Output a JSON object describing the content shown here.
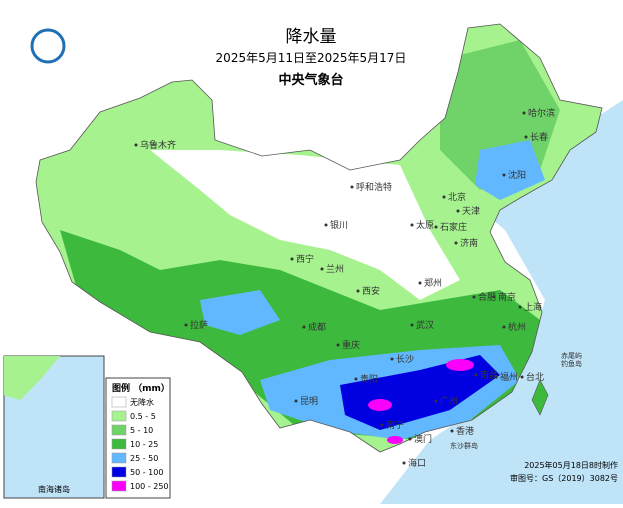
{
  "header": {
    "title": "降水量",
    "subtitle": "2025年5月11日至2025年5月17日",
    "issuer": "中央气象台"
  },
  "legend": {
    "title": "图例 （mm）",
    "items": [
      {
        "label": "无降水",
        "color": "#ffffff"
      },
      {
        "label": "0.5 - 5",
        "color": "#a6f28f"
      },
      {
        "label": "5 - 10",
        "color": "#6fd36a"
      },
      {
        "label": "10 - 25",
        "color": "#3dba3d"
      },
      {
        "label": "25 - 50",
        "color": "#61b8ff"
      },
      {
        "label": "50 - 100",
        "color": "#0000e1"
      },
      {
        "label": "100 - 250",
        "color": "#fa00fa"
      }
    ]
  },
  "cities": [
    "乌鲁木齐",
    "哈尔滨",
    "长春",
    "沈阳",
    "呼和浩特",
    "北京",
    "天津",
    "银川",
    "太原",
    "石家庄",
    "济南",
    "西宁",
    "兰州",
    "郑州",
    "西安",
    "合肥",
    "南京",
    "上海",
    "拉萨",
    "成都",
    "武汉",
    "杭州",
    "重庆",
    "长沙",
    "南昌",
    "贵阳",
    "福州",
    "台北",
    "昆明",
    "广州",
    "香港",
    "澳门",
    "南宁",
    "海口"
  ],
  "sea_labels": [
    "赤尾屿",
    "钓鱼岛",
    "东沙群岛"
  ],
  "inset_label": "南海诸岛",
  "footer": {
    "made": "2025年05月18日8时制作",
    "approval": "审图号：GS（2019）3082号"
  }
}
